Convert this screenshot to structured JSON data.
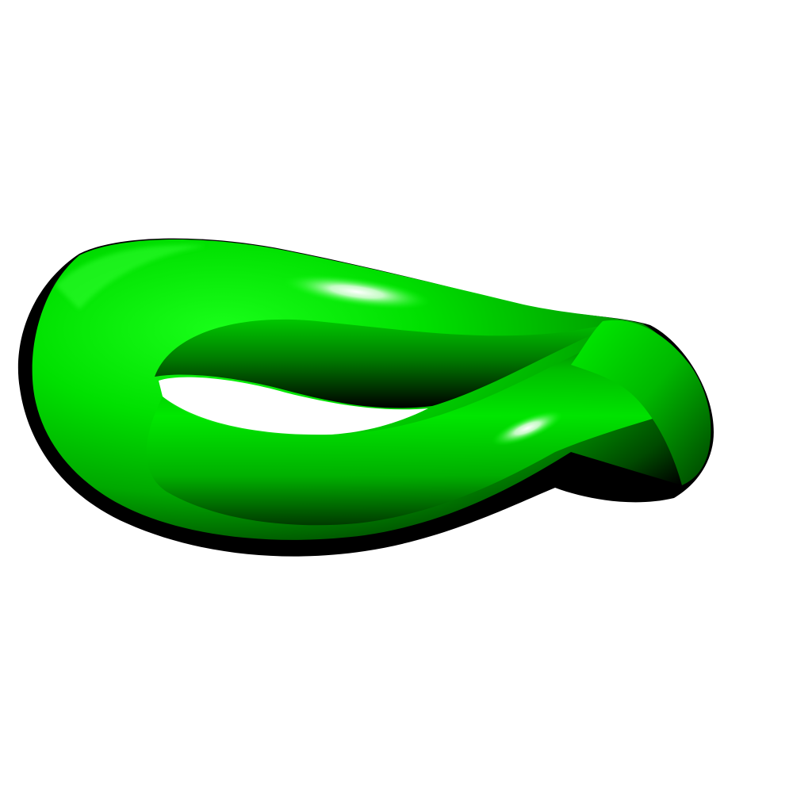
{
  "scene": {
    "background_color": "#ffffff",
    "object": {
      "shape": "twisted-torus-loop",
      "base_color": "#00e000",
      "highlight_color": "#e8ffe8",
      "shadow_color": "#000000"
    }
  }
}
